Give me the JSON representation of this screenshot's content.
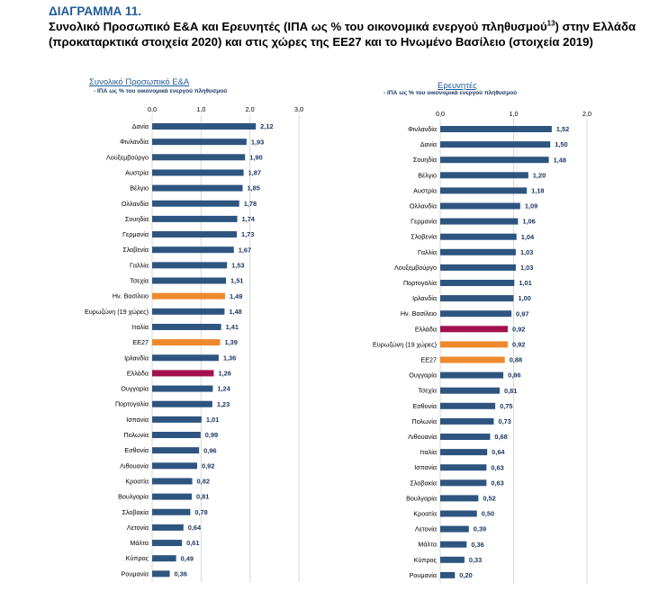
{
  "figure": {
    "label": "ΔΙΑΓΡΑΜΜΑ 11.",
    "title_part1": "Συνολικό Προσωπικό Ε&Α και Ερευνητές (ΙΠΑ ως % του οικονομικά ενεργού πληθυσμού",
    "title_sup": "13",
    "title_part2": ") στην Ελλάδα (προκαταρκτικά στοιχεία 2020) και στις χώρες της ΕΕ27 και το Ηνωμένο Βασίλειο (στοιχεία 2019)"
  },
  "colors": {
    "default": "#2e5580",
    "greece": "#a3124e",
    "highlight": "#ee8a2c"
  },
  "chart_data": [
    {
      "type": "bar",
      "orientation": "horizontal",
      "title": "Συνολικό Προσωπικό Ε&Α",
      "subtitle": "- ΙΠΑ ως % του οικονομικά ενεργού πληθυσμού",
      "xlim": [
        0,
        3.0
      ],
      "ticks": [
        "0,0",
        "1,0",
        "2,0",
        "3,0"
      ],
      "grid": true,
      "categories": [
        "Δανία",
        "Φινλανδία",
        "Λουξεμβούργο",
        "Αυστρία",
        "Βέλγιο",
        "Ολλανδία",
        "Σουηδία",
        "Γερμανία",
        "Σλοβενία",
        "Γαλλία",
        "Τσεχία",
        "Ην. Βασίλειο",
        "Ευρωζώνη (19 χώρες)",
        "Ιταλία",
        "ΕΕ27",
        "Ιρλανδία",
        "Ελλάδα",
        "Ουγγαρία",
        "Πορτογαλία",
        "Ισπανία",
        "Πολωνία",
        "Εσθονία",
        "Λιθουανία",
        "Κροατία",
        "Βουλγαρία",
        "Σλοβακία",
        "Λετονία",
        "Μάλτα",
        "Κύπρος",
        "Ρουμανία"
      ],
      "values": [
        2.12,
        1.93,
        1.9,
        1.87,
        1.85,
        1.78,
        1.74,
        1.73,
        1.67,
        1.53,
        1.51,
        1.49,
        1.48,
        1.41,
        1.39,
        1.36,
        1.26,
        1.24,
        1.23,
        1.01,
        0.99,
        0.96,
        0.92,
        0.82,
        0.81,
        0.78,
        0.64,
        0.61,
        0.49,
        0.36
      ],
      "value_labels": [
        "2,12",
        "1,93",
        "1,90",
        "1,87",
        "1,85",
        "1,78",
        "1,74",
        "1,73",
        "1,67",
        "1,53",
        "1,51",
        "1,49",
        "1,48",
        "1,41",
        "1,39",
        "1,36",
        "1,26",
        "1,24",
        "1,23",
        "1,01",
        "0,99",
        "0,96",
        "0,92",
        "0,82",
        "0,81",
        "0,78",
        "0,64",
        "0,61",
        "0,49",
        "0,36"
      ],
      "bar_colors": [
        "default",
        "default",
        "default",
        "default",
        "default",
        "default",
        "default",
        "default",
        "default",
        "default",
        "default",
        "highlight",
        "default",
        "default",
        "highlight",
        "default",
        "greece",
        "default",
        "default",
        "default",
        "default",
        "default",
        "default",
        "default",
        "default",
        "default",
        "default",
        "default",
        "default",
        "default"
      ]
    },
    {
      "type": "bar",
      "orientation": "horizontal",
      "title": "Ερευνητές",
      "subtitle": "- ΙΠΑ ως % του οικονομικά ενεργού πληθυσμού",
      "xlim": [
        0,
        2.0
      ],
      "ticks": [
        "0,0",
        "1,0",
        "2,0"
      ],
      "grid": true,
      "categories": [
        "Φινλανδία",
        "Δανία",
        "Σουηδία",
        "Βέλγιο",
        "Αυστρία",
        "Ολλανδία",
        "Γερμανία",
        "Σλοβενία",
        "Γαλλία",
        "Λουξεμβούργο",
        "Πορτογαλία",
        "Ιρλανδία",
        "Ην. Βασίλειο",
        "Ελλάδα",
        "Ευρωζώνη (19 χώρες)",
        "ΕΕ27",
        "Ουγγαρία",
        "Τσεχία",
        "Εσθονία",
        "Πολωνία",
        "Λιθουανία",
        "Ιταλία",
        "Ισπανία",
        "Σλοβακία",
        "Βουλγαρία",
        "Κροατία",
        "Λετονία",
        "Μάλτα",
        "Κύπρος",
        "Ρουμανία"
      ],
      "values": [
        1.52,
        1.5,
        1.48,
        1.2,
        1.18,
        1.09,
        1.06,
        1.04,
        1.03,
        1.03,
        1.01,
        1.0,
        0.97,
        0.92,
        0.92,
        0.88,
        0.86,
        0.81,
        0.75,
        0.73,
        0.68,
        0.64,
        0.63,
        0.63,
        0.52,
        0.5,
        0.39,
        0.36,
        0.33,
        0.2
      ],
      "value_labels": [
        "1,52",
        "1,50",
        "1,48",
        "1,20",
        "1,18",
        "1,09",
        "1,06",
        "1,04",
        "1,03",
        "1,03",
        "1,01",
        "1,00",
        "0,97",
        "0,92",
        "0,92",
        "0,88",
        "0,86",
        "0,81",
        "0,75",
        "0,73",
        "0,68",
        "0,64",
        "0,63",
        "0,63",
        "0,52",
        "0,50",
        "0,39",
        "0,36",
        "0,33",
        "0,20"
      ],
      "bar_colors": [
        "default",
        "default",
        "default",
        "default",
        "default",
        "default",
        "default",
        "default",
        "default",
        "default",
        "default",
        "default",
        "default",
        "greece",
        "highlight",
        "highlight",
        "default",
        "default",
        "default",
        "default",
        "default",
        "default",
        "default",
        "default",
        "default",
        "default",
        "default",
        "default",
        "default",
        "default"
      ]
    }
  ]
}
